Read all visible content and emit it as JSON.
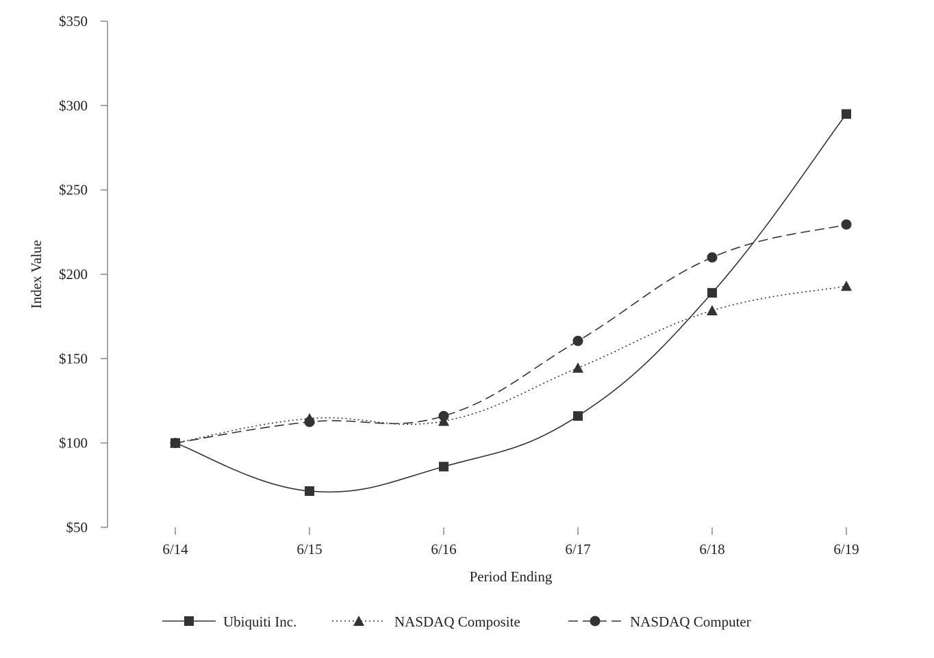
{
  "chart_data": {
    "type": "line",
    "title": "",
    "xlabel": "Period Ending",
    "ylabel": "Index Value",
    "ylim": [
      50,
      350
    ],
    "yticks": [
      50,
      100,
      150,
      200,
      250,
      300,
      350
    ],
    "ytick_labels": [
      "$50",
      "$100",
      "$150",
      "$200",
      "$250",
      "$300",
      "$350"
    ],
    "categories": [
      "6/14",
      "6/15",
      "6/16",
      "6/17",
      "6/18",
      "6/19"
    ],
    "grid": false,
    "legend_position": "bottom",
    "series": [
      {
        "name": "Ubiquiti Inc.",
        "marker": "square",
        "dash": "solid",
        "color": "#333333",
        "values": [
          100,
          71.5,
          86,
          116,
          189,
          295
        ]
      },
      {
        "name": "NASDAQ Composite",
        "marker": "triangle",
        "dash": "dotted",
        "color": "#333333",
        "values": [
          100,
          114.5,
          113,
          144.5,
          178.5,
          193
        ]
      },
      {
        "name": "NASDAQ Computer",
        "marker": "circle",
        "dash": "dashed",
        "color": "#333333",
        "values": [
          100,
          112.5,
          116,
          160.5,
          210,
          229.5
        ]
      }
    ]
  }
}
